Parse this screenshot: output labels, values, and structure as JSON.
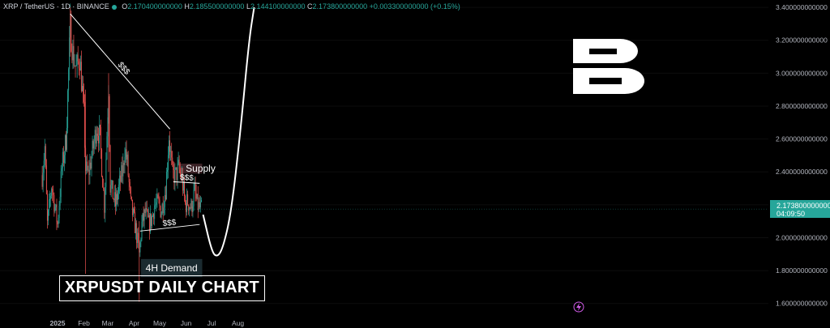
{
  "header": {
    "symbol": "XRP / TetherUS · 1D · BINANCE",
    "open_label": "O",
    "open": "2.170400000000",
    "high_label": "H",
    "high": "2.185500000000",
    "low_label": "L",
    "low": "2.144100000000",
    "close_label": "C",
    "close": "2.173800000000",
    "change": "+0.003300000000 (+0.15%)"
  },
  "title": "XRPUSDT DAILY CHART",
  "price_badge": {
    "price": "2.173800000000",
    "countdown": "04:09:50"
  },
  "colors": {
    "up": "#26a69a",
    "down": "#ef5350",
    "background": "#000000",
    "supply_zone": "#3b2226",
    "demand_zone": "#1b2b30",
    "annotation": "#ffffff"
  },
  "icons": {
    "logo": "b-letter-logo",
    "flash": "lightning-icon"
  },
  "chart_data": {
    "type": "candlestick",
    "x_tick_labels": [
      "2025",
      "Feb",
      "Mar",
      "Apr",
      "May",
      "Jun",
      "Jul",
      "Aug"
    ],
    "y_tick_labels": [
      "1.600000000000",
      "1.800000000000",
      "2.000000000000",
      "2.200000000000",
      "2.400000000000",
      "2.600000000000",
      "2.800000000000",
      "3.000000000000",
      "3.200000000000",
      "3.400000000000"
    ],
    "ylim": [
      1.5,
      3.42
    ],
    "current_price": 2.1738,
    "anchors": [
      [
        "2024-12-14",
        2.38
      ],
      [
        "2024-12-17",
        2.55
      ],
      [
        "2024-12-20",
        2.08
      ],
      [
        "2024-12-25",
        2.32
      ],
      [
        "2025-01-01",
        2.08
      ],
      [
        "2025-01-06",
        2.42
      ],
      [
        "2025-01-11",
        2.6
      ],
      [
        "2025-01-16",
        3.28
      ],
      [
        "2025-01-19",
        3.12
      ],
      [
        "2025-01-23",
        3.02
      ],
      [
        "2025-01-27",
        3.1
      ],
      [
        "2025-02-01",
        2.75
      ],
      [
        "2025-02-03",
        2.42
      ],
      [
        "2025-02-06",
        2.38
      ],
      [
        "2025-02-12",
        2.55
      ],
      [
        "2025-02-16",
        2.68
      ],
      [
        "2025-02-20",
        2.6
      ],
      [
        "2025-02-25",
        2.2
      ],
      [
        "2025-03-02",
        2.92
      ],
      [
        "2025-03-04",
        2.32
      ],
      [
        "2025-03-10",
        2.2
      ],
      [
        "2025-03-14",
        2.3
      ],
      [
        "2025-03-19",
        2.42
      ],
      [
        "2025-03-21",
        2.55
      ],
      [
        "2025-03-24",
        2.45
      ],
      [
        "2025-03-28",
        2.2
      ],
      [
        "2025-04-03",
        2.05
      ],
      [
        "2025-04-07",
        1.9
      ],
      [
        "2025-04-10",
        2.08
      ],
      [
        "2025-04-14",
        2.15
      ],
      [
        "2025-04-18",
        2.08
      ],
      [
        "2025-04-22",
        2.12
      ],
      [
        "2025-04-25",
        2.2
      ],
      [
        "2025-04-30",
        2.2
      ],
      [
        "2025-05-03",
        2.16
      ],
      [
        "2025-05-08",
        2.3
      ],
      [
        "2025-05-12",
        2.62
      ],
      [
        "2025-05-16",
        2.38
      ],
      [
        "2025-05-20",
        2.38
      ],
      [
        "2025-05-23",
        2.42
      ],
      [
        "2025-05-27",
        2.36
      ],
      [
        "2025-05-31",
        2.2
      ],
      [
        "2025-06-03",
        2.22
      ],
      [
        "2025-06-07",
        2.18
      ],
      [
        "2025-06-11",
        2.28
      ],
      [
        "2025-06-14",
        2.2
      ],
      [
        "2025-06-17",
        2.18
      ],
      [
        "2025-06-19",
        2.17
      ]
    ],
    "lines": [
      {
        "label": "$$$",
        "from": [
          "2025-01-16",
          3.36
        ],
        "to": [
          "2025-05-13",
          2.66
        ]
      },
      {
        "label": "$$$",
        "from": [
          "2025-05-17",
          2.34
        ],
        "to": [
          "2025-06-17",
          2.33
        ]
      },
      {
        "label": "$$$",
        "from": [
          "2025-04-08",
          2.04
        ],
        "to": [
          "2025-06-17",
          2.08
        ]
      }
    ],
    "zones": [
      {
        "label": "Supply",
        "from": "2025-05-24",
        "to": "2025-06-20",
        "y_low": 2.39,
        "y_high": 2.45
      },
      {
        "label": "4H Demand",
        "from": "2025-04-09",
        "to": "2025-06-20",
        "y_low": 1.76,
        "y_high": 1.87
      }
    ],
    "projection": [
      [
        "2025-06-21",
        2.14
      ],
      [
        "2025-07-01",
        1.92
      ],
      [
        "2025-07-07",
        1.88
      ],
      [
        "2025-07-14",
        1.93
      ],
      [
        "2025-07-24",
        2.15
      ],
      [
        "2025-08-04",
        2.65
      ],
      [
        "2025-08-14",
        3.2
      ],
      [
        "2025-08-20",
        3.4
      ]
    ]
  }
}
